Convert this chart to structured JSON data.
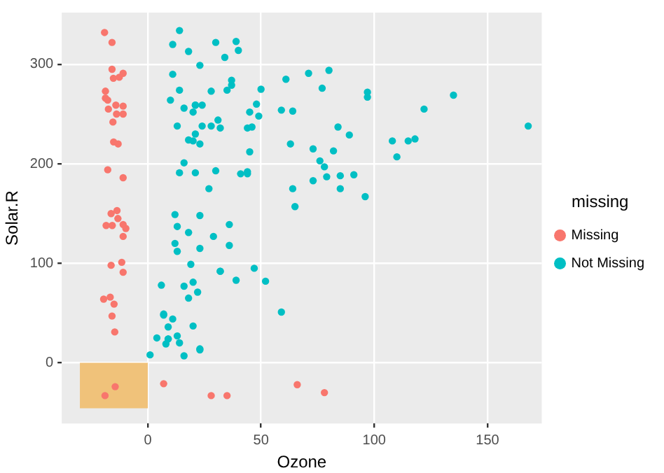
{
  "chart_data": {
    "type": "scatter",
    "xlabel": "Ozone",
    "ylabel": "Solar.R",
    "legend_title": "missing",
    "legend": "right",
    "grid": true,
    "marker": "circle",
    "xlim": [
      -38,
      174
    ],
    "ylim": [
      -61,
      352
    ],
    "xticks": [
      0,
      50,
      100,
      150
    ],
    "yticks": [
      0,
      100,
      200,
      300
    ],
    "series": [
      {
        "type": "area",
        "marker": "none",
        "color": "#f0c27a",
        "x": [
          -30,
          0
        ],
        "values": [
          -45,
          -45
        ]
      },
      {
        "name": "Missing",
        "color": "#f8766d",
        "x": [
          -19.1,
          -15.8,
          -15.8,
          -15.2,
          -12.6,
          -10.9,
          -18.7,
          -18.7,
          -17.7,
          -14.1,
          -17.4,
          -10.9,
          -13.8,
          -10.9,
          -15.4,
          -13.1,
          -10.9,
          -15.1,
          -17.7,
          -13.6,
          -16.2,
          -13.2,
          -15.7,
          -10.9,
          -9.7,
          -18.4,
          -10.9,
          -16.2,
          -11.5,
          -10.9,
          -19.5,
          -16.6,
          -14.9,
          -15.8,
          -14.6,
          -14.4,
          -18.9,
          7,
          28,
          35,
          66,
          78
        ],
        "values": [
          332,
          322,
          295,
          286,
          287,
          291,
          273,
          266,
          264,
          259,
          255,
          258,
          250,
          250,
          242,
          220,
          186,
          222,
          194,
          153,
          150,
          145,
          138,
          139,
          135,
          138,
          127,
          98,
          101,
          91,
          64,
          66,
          59,
          47,
          31,
          -24,
          -33,
          -21,
          -33,
          -33,
          -22,
          -30
        ]
      },
      {
        "name": "Not Missing",
        "color": "#00bfc4",
        "x": [
          41,
          36,
          12,
          18,
          23,
          19,
          8,
          16,
          11,
          14,
          18,
          14,
          34,
          6,
          30,
          11,
          1,
          11,
          4,
          32,
          23,
          45,
          115,
          37,
          29,
          71,
          39,
          23,
          21,
          37,
          20,
          12,
          13,
          135,
          49,
          32,
          64,
          40,
          77,
          97,
          97,
          85,
          10,
          27,
          7,
          48,
          35,
          61,
          79,
          63,
          16,
          80,
          108,
          20,
          52,
          82,
          50,
          64,
          59,
          39,
          9,
          16,
          122,
          89,
          110,
          44,
          28,
          65,
          22,
          59,
          23,
          31,
          44,
          21,
          9,
          45,
          168,
          73,
          76,
          118,
          84,
          85,
          96,
          78,
          73,
          91,
          47,
          32,
          20,
          23,
          21,
          24,
          44,
          21,
          28,
          9,
          13,
          46,
          18,
          13,
          24,
          16,
          13,
          23,
          36,
          7,
          14,
          30,
          14,
          18,
          20
        ],
        "values": [
          190,
          118,
          149,
          313,
          299,
          99,
          19,
          256,
          290,
          274,
          65,
          334,
          307,
          78,
          322,
          44,
          8,
          320,
          25,
          92,
          13,
          252,
          223,
          279,
          127,
          291,
          323,
          148,
          191,
          284,
          37,
          120,
          137,
          269,
          248,
          236,
          175,
          314,
          276,
          267,
          272,
          175,
          264,
          175,
          48,
          260,
          274,
          285,
          187,
          220,
          7,
          294,
          223,
          81,
          82,
          213,
          275,
          253,
          254,
          83,
          24,
          77,
          255,
          229,
          207,
          192,
          273,
          157,
          71,
          51,
          115,
          244,
          190,
          259,
          36,
          212,
          238,
          215,
          203,
          225,
          237,
          188,
          167,
          197,
          183,
          189,
          95,
          92,
          252,
          220,
          230,
          259,
          236,
          259,
          238,
          24,
          112,
          237,
          224,
          27,
          238,
          201,
          238,
          14,
          139,
          49,
          20,
          193,
          191,
          131,
          223
        ]
      }
    ]
  }
}
